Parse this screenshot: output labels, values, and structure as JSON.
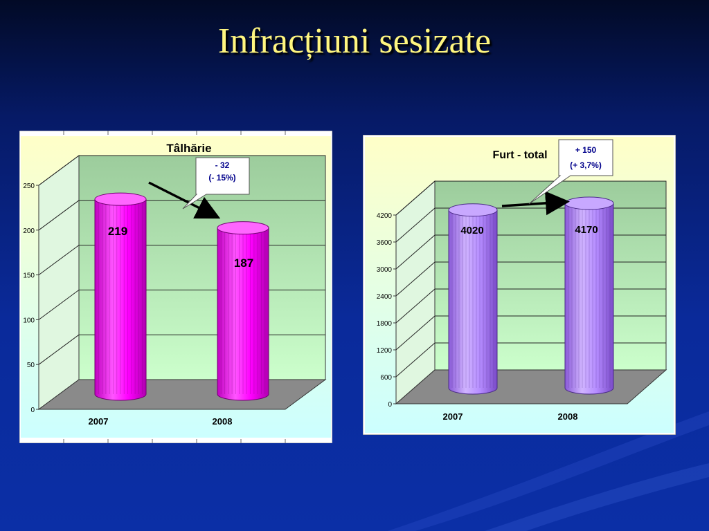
{
  "slide": {
    "title": "Infracțiuni sesizate"
  },
  "colors": {
    "bar_left": "#ff00ff",
    "bar_right": "#b58cff",
    "title_text": "#fff680",
    "background": "#0a2a9a"
  },
  "chart_data": [
    {
      "type": "bar",
      "title": "Tâlhărie",
      "categories": [
        "2007",
        "2008"
      ],
      "values": [
        219,
        187
      ],
      "data_labels": [
        "219",
        "187"
      ],
      "ylim": [
        0,
        250
      ],
      "yticks": [
        "0",
        "50",
        "100",
        "150",
        "200",
        "250"
      ],
      "grid": true,
      "callout": {
        "line1": "- 32",
        "line2": "(- 15%)"
      }
    },
    {
      "type": "bar",
      "title": "Furt - total",
      "categories": [
        "2007",
        "2008"
      ],
      "values": [
        4020,
        4170
      ],
      "data_labels": [
        "4020",
        "4170"
      ],
      "ylim": [
        0,
        4200
      ],
      "yticks": [
        "0",
        "600",
        "1200",
        "1800",
        "2400",
        "3000",
        "3600",
        "4200"
      ],
      "grid": true,
      "callout": {
        "line1": "+ 150",
        "line2": "(+ 3,7%)"
      }
    }
  ]
}
